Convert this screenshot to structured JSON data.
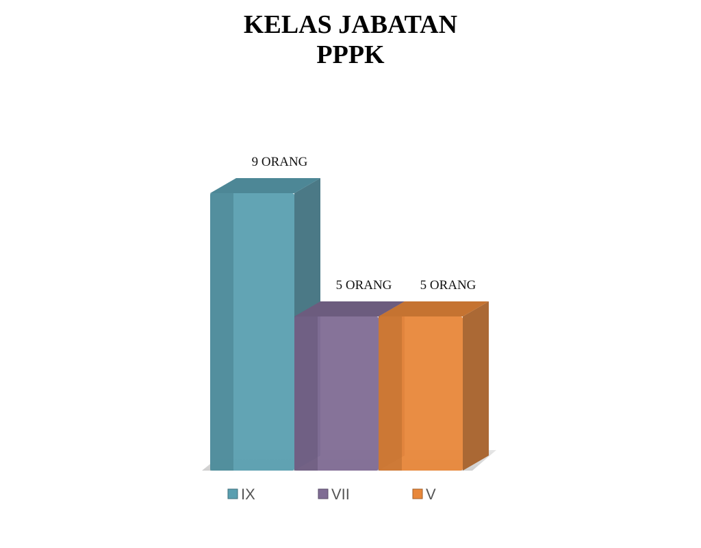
{
  "chart_data": {
    "type": "bar3d",
    "title": [
      "KELAS JABATAN",
      "PPPK"
    ],
    "series": [
      {
        "name": "IX",
        "color": "#5a9fb0",
        "values": [
          9
        ],
        "value_labels": [
          "9 ORANG"
        ]
      },
      {
        "name": "VII",
        "color": "#7f6c94",
        "values": [
          5
        ],
        "value_labels": [
          "5 ORANG"
        ]
      },
      {
        "name": "V",
        "color": "#e8873a",
        "values": [
          5
        ],
        "value_labels": [
          "5 ORANG"
        ]
      }
    ]
  }
}
